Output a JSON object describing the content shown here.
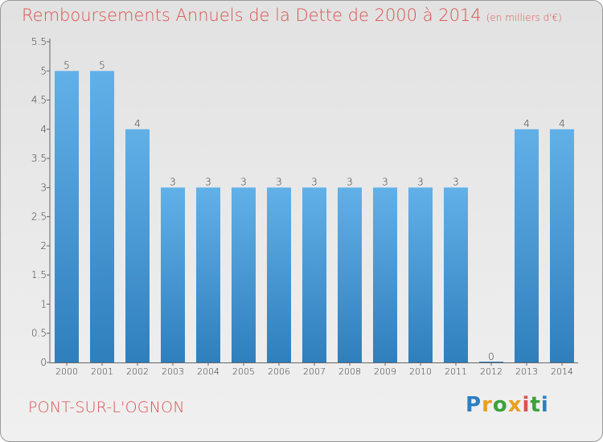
{
  "header": {
    "title": "Remboursements Annuels de la Dette de 2000 à 2014",
    "subtitle": "(en milliers d'€)"
  },
  "footer": {
    "place": "PONT-SUR-L'OGNON",
    "brand": "Proxiti"
  },
  "colors": {
    "title": "#d9534f",
    "bar_light": "#62b0e8",
    "bar_dark": "#2f7fbd"
  },
  "chart_data": {
    "type": "bar",
    "title": "Remboursements Annuels de la Dette de 2000 à 2014",
    "xlabel": "",
    "ylabel": "(en milliers d'€)",
    "categories": [
      "2000",
      "2001",
      "2002",
      "2003",
      "2004",
      "2005",
      "2006",
      "2007",
      "2008",
      "2009",
      "2010",
      "2011",
      "2012",
      "2013",
      "2014"
    ],
    "values": [
      5,
      5,
      4,
      3,
      3,
      3,
      3,
      3,
      3,
      3,
      3,
      3,
      0,
      4,
      4
    ],
    "value_labels": [
      "5",
      "5",
      "4",
      "3",
      "3",
      "3",
      "3",
      "3",
      "3",
      "3",
      "3",
      "3",
      "0",
      "4",
      "4"
    ],
    "yticks": [
      "0",
      "0.5",
      "1",
      "1.5",
      "2",
      "2.5",
      "3",
      "3.5",
      "4",
      "4.5",
      "5",
      "5.5"
    ],
    "ylim": [
      0,
      5.5
    ],
    "grid": false,
    "legend": "none"
  }
}
